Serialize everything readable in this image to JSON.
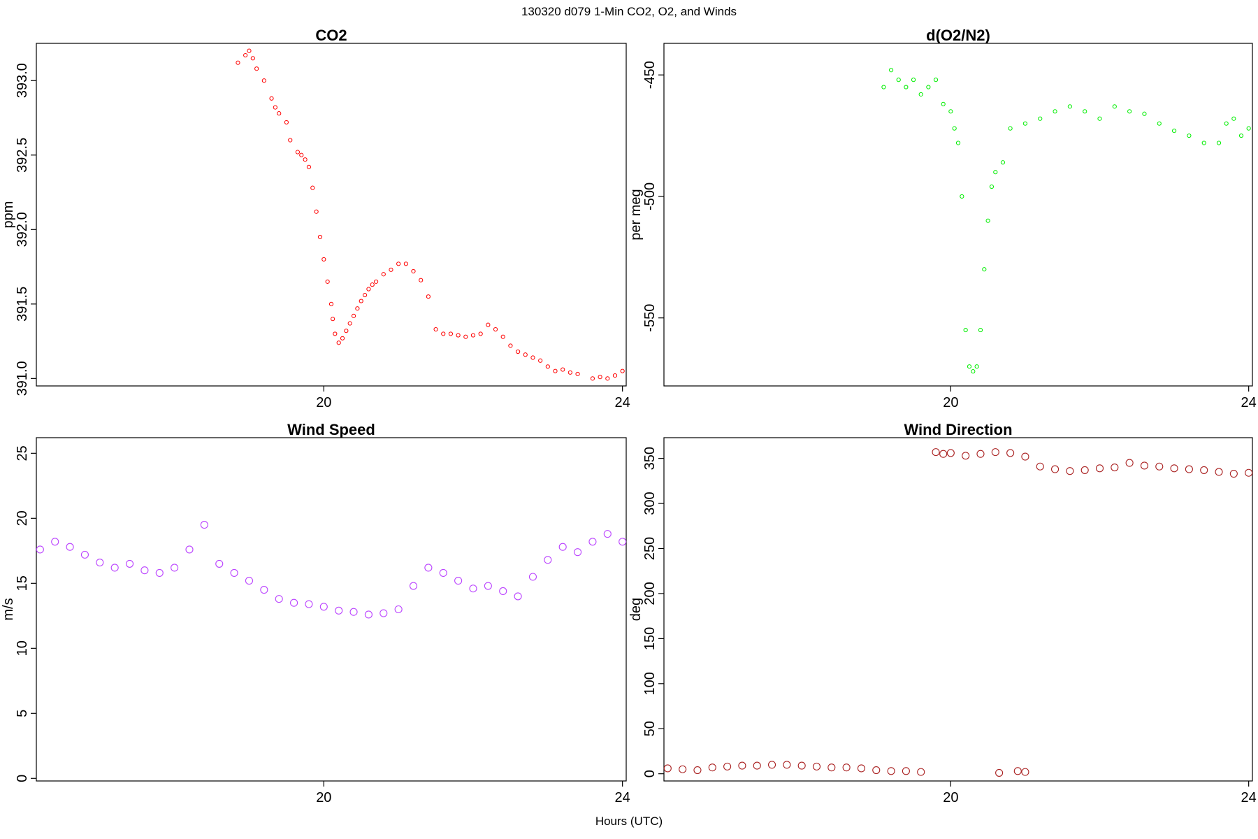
{
  "figure": {
    "title": "130320   d079   1-Min CO2, O2, and Winds",
    "xlabel": "Hours (UTC)"
  },
  "chart_data": [
    {
      "type": "scatter",
      "title": "CO2",
      "xlabel": "",
      "ylabel": "ppm",
      "xlim": [
        16.15,
        24.05
      ],
      "ylim": [
        390.95,
        393.25
      ],
      "xticks": [
        20,
        24
      ],
      "xtick_labels": [
        "20",
        "24"
      ],
      "yticks": [
        391.0,
        391.5,
        392.0,
        392.5,
        393.0
      ],
      "ytick_labels": [
        "391.0",
        "391.5",
        "392.0",
        "392.5",
        "393.0"
      ],
      "grid": false,
      "color": "#ff0000",
      "marker_size": "small",
      "series": [
        {
          "x": [
            18.85,
            18.95,
            19.0,
            19.05,
            19.1,
            19.2,
            19.3,
            19.35,
            19.4,
            19.5,
            19.55,
            19.65,
            19.7,
            19.75,
            19.8,
            19.85,
            19.9,
            19.95,
            20.0,
            20.05,
            20.1,
            20.12,
            20.15,
            20.2,
            20.25,
            20.3,
            20.35,
            20.4,
            20.45,
            20.5,
            20.55,
            20.6,
            20.65,
            20.7,
            20.8,
            20.9,
            21.0,
            21.1,
            21.2,
            21.3,
            21.4,
            21.5,
            21.6,
            21.7,
            21.8,
            21.9,
            22.0,
            22.1,
            22.2,
            22.3,
            22.4,
            22.5,
            22.6,
            22.7,
            22.8,
            22.9,
            23.0,
            23.1,
            23.2,
            23.3,
            23.4,
            23.6,
            23.7,
            23.8,
            23.9,
            24.0
          ],
          "y": [
            393.12,
            393.17,
            393.2,
            393.15,
            393.08,
            393.0,
            392.88,
            392.82,
            392.78,
            392.72,
            392.6,
            392.52,
            392.5,
            392.47,
            392.42,
            392.28,
            392.12,
            391.95,
            391.8,
            391.65,
            391.5,
            391.4,
            391.3,
            391.24,
            391.27,
            391.32,
            391.37,
            391.42,
            391.47,
            391.52,
            391.56,
            391.6,
            391.63,
            391.65,
            391.7,
            391.73,
            391.77,
            391.77,
            391.72,
            391.66,
            391.55,
            391.33,
            391.3,
            391.3,
            391.29,
            391.28,
            391.29,
            391.3,
            391.36,
            391.33,
            391.28,
            391.22,
            391.18,
            391.16,
            391.14,
            391.12,
            391.08,
            391.05,
            391.06,
            391.04,
            391.03,
            391.0,
            391.01,
            391.0,
            391.02,
            391.05
          ]
        }
      ]
    },
    {
      "type": "scatter",
      "title": "d(O2/N2)",
      "xlabel": "",
      "ylabel": "per meg",
      "xlim": [
        16.15,
        24.05
      ],
      "ylim": [
        -578,
        -437
      ],
      "xticks": [
        20,
        24
      ],
      "xtick_labels": [
        "20",
        "24"
      ],
      "yticks": [
        -450,
        -500,
        -550
      ],
      "ytick_labels": [
        "-450",
        "-500",
        "-550"
      ],
      "grid": false,
      "color": "#00ee00",
      "marker_size": "small",
      "series": [
        {
          "x": [
            19.1,
            19.2,
            19.3,
            19.4,
            19.5,
            19.6,
            19.7,
            19.8,
            19.9,
            20.0,
            20.05,
            20.1,
            20.15,
            20.2,
            20.25,
            20.3,
            20.35,
            20.4,
            20.45,
            20.5,
            20.55,
            20.6,
            20.7,
            20.8,
            21.0,
            21.2,
            21.4,
            21.6,
            21.8,
            22.0,
            22.2,
            22.4,
            22.6,
            22.8,
            23.0,
            23.2,
            23.4,
            23.6,
            23.7,
            23.8,
            23.9,
            24.0
          ],
          "y": [
            -455,
            -448,
            -452,
            -455,
            -452,
            -458,
            -455,
            -452,
            -462,
            -465,
            -472,
            -478,
            -500,
            -555,
            -570,
            -572,
            -570,
            -555,
            -530,
            -510,
            -496,
            -490,
            -486,
            -472,
            -470,
            -468,
            -465,
            -463,
            -465,
            -468,
            -463,
            -465,
            -466,
            -470,
            -473,
            -475,
            -478,
            -478,
            -470,
            -468,
            -475,
            -472
          ]
        }
      ]
    },
    {
      "type": "scatter",
      "title": "Wind Speed",
      "xlabel": "",
      "ylabel": "m/s",
      "xlim": [
        16.15,
        24.05
      ],
      "ylim": [
        -0.2,
        26.2
      ],
      "xticks": [
        20,
        24
      ],
      "xtick_labels": [
        "20",
        "24"
      ],
      "yticks": [
        0,
        5,
        10,
        15,
        20,
        25
      ],
      "ytick_labels": [
        "0",
        "5",
        "10",
        "15",
        "20",
        "25"
      ],
      "grid": false,
      "color": "#bb44ff",
      "marker_size": "large",
      "series": [
        {
          "x": [
            16.2,
            16.4,
            16.6,
            16.8,
            17.0,
            17.2,
            17.4,
            17.6,
            17.8,
            18.0,
            18.2,
            18.4,
            18.6,
            18.8,
            19.0,
            19.2,
            19.4,
            19.6,
            19.8,
            20.0,
            20.2,
            20.4,
            20.6,
            20.8,
            21.0,
            21.2,
            21.4,
            21.6,
            21.8,
            22.0,
            22.2,
            22.4,
            22.6,
            22.8,
            23.0,
            23.2,
            23.4,
            23.6,
            23.8,
            24.0
          ],
          "y": [
            17.6,
            18.2,
            17.8,
            17.2,
            16.6,
            16.2,
            16.5,
            16.0,
            15.8,
            16.2,
            17.6,
            19.5,
            16.5,
            15.8,
            15.2,
            14.5,
            13.8,
            13.5,
            13.4,
            13.2,
            12.9,
            12.8,
            12.6,
            12.7,
            13.0,
            14.8,
            16.2,
            15.8,
            15.2,
            14.6,
            14.8,
            14.4,
            14.0,
            15.5,
            16.8,
            17.8,
            17.4,
            18.2,
            18.8,
            18.2
          ]
        }
      ]
    },
    {
      "type": "scatter",
      "title": "Wind Direction",
      "xlabel": "",
      "ylabel": "deg",
      "xlim": [
        16.15,
        24.05
      ],
      "ylim": [
        -8,
        373
      ],
      "xticks": [
        20,
        24
      ],
      "xtick_labels": [
        "20",
        "24"
      ],
      "yticks": [
        0,
        50,
        100,
        150,
        200,
        250,
        300,
        350
      ],
      "ytick_labels": [
        "0",
        "50",
        "100",
        "150",
        "200",
        "250",
        "300",
        "350"
      ],
      "grid": false,
      "color": "#aa2222",
      "marker_size": "large",
      "series": [
        {
          "x": [
            16.2,
            16.4,
            16.6,
            16.8,
            17.0,
            17.2,
            17.4,
            17.6,
            17.8,
            18.0,
            18.2,
            18.4,
            18.6,
            18.8,
            19.0,
            19.2,
            19.4,
            19.6,
            19.8,
            19.9,
            20.0,
            20.2,
            20.4,
            20.6,
            20.8,
            21.0,
            21.2,
            21.4,
            21.6,
            21.8,
            22.0,
            22.2,
            22.4,
            22.6,
            22.8,
            23.0,
            23.2,
            23.4,
            23.6,
            23.8,
            24.0,
            20.65,
            20.9,
            21.0
          ],
          "y": [
            6,
            5,
            4,
            7,
            8,
            9,
            9,
            10,
            10,
            9,
            8,
            7,
            7,
            6,
            4,
            3,
            3,
            2,
            357,
            355,
            356,
            353,
            355,
            357,
            356,
            352,
            341,
            338,
            336,
            337,
            339,
            340,
            345,
            342,
            341,
            339,
            338,
            337,
            335,
            333,
            334,
            1,
            3,
            2
          ]
        }
      ]
    }
  ]
}
